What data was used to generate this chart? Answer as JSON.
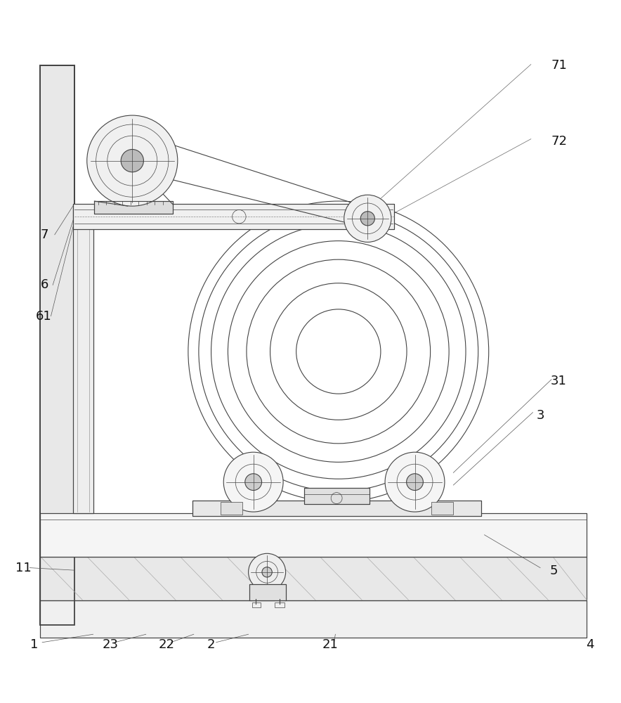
{
  "bg_color": "#ffffff",
  "line_color": "#444444",
  "line_width": 0.8,
  "thin_line": 0.5,
  "thick_line": 1.3
}
